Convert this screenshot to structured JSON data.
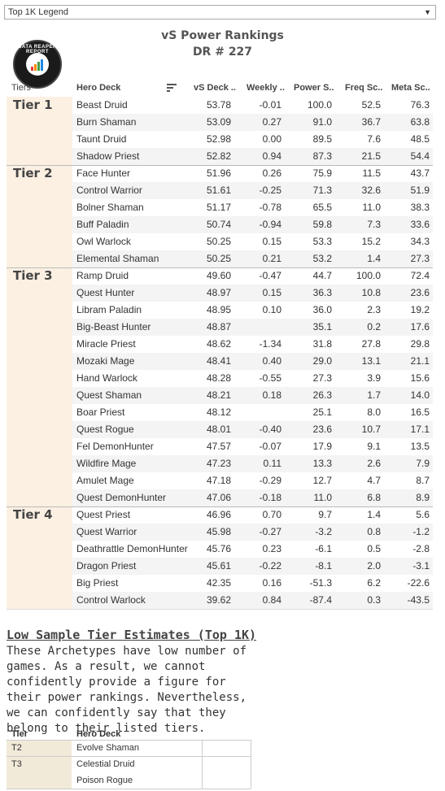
{
  "dropdown": {
    "selected": "Top 1K Legend"
  },
  "title": {
    "line1": "vS Power Rankings",
    "line2": "DR # 227"
  },
  "logo": {
    "text": "DATA REAPER REPORT"
  },
  "columns": [
    "Tiers",
    "Hero Deck",
    "vS Deck ..",
    "Weekly ..",
    "Power S..",
    "Freq Sc..",
    "Meta Sc.."
  ],
  "tiers": [
    {
      "label": "Tier 1",
      "rows": [
        [
          "Beast Druid",
          "53.78",
          "-0.01",
          "100.0",
          "52.5",
          "76.3"
        ],
        [
          "Burn Shaman",
          "53.09",
          "0.27",
          "91.0",
          "36.7",
          "63.8"
        ],
        [
          "Taunt Druid",
          "52.98",
          "0.00",
          "89.5",
          "7.6",
          "48.5"
        ],
        [
          "Shadow Priest",
          "52.82",
          "0.94",
          "87.3",
          "21.5",
          "54.4"
        ]
      ]
    },
    {
      "label": "Tier 2",
      "rows": [
        [
          "Face Hunter",
          "51.96",
          "0.26",
          "75.9",
          "11.5",
          "43.7"
        ],
        [
          "Control Warrior",
          "51.61",
          "-0.25",
          "71.3",
          "32.6",
          "51.9"
        ],
        [
          "Bolner Shaman",
          "51.17",
          "-0.78",
          "65.5",
          "11.0",
          "38.3"
        ],
        [
          "Buff Paladin",
          "50.74",
          "-0.94",
          "59.8",
          "7.3",
          "33.6"
        ],
        [
          "Owl Warlock",
          "50.25",
          "0.15",
          "53.3",
          "15.2",
          "34.3"
        ],
        [
          "Elemental Shaman",
          "50.25",
          "0.21",
          "53.2",
          "1.4",
          "27.3"
        ]
      ]
    },
    {
      "label": "Tier 3",
      "rows": [
        [
          "Ramp Druid",
          "49.60",
          "-0.47",
          "44.7",
          "100.0",
          "72.4"
        ],
        [
          "Quest Hunter",
          "48.97",
          "0.15",
          "36.3",
          "10.8",
          "23.6"
        ],
        [
          "Libram Paladin",
          "48.95",
          "0.10",
          "36.0",
          "2.3",
          "19.2"
        ],
        [
          "Big-Beast Hunter",
          "48.87",
          "",
          "35.1",
          "0.2",
          "17.6"
        ],
        [
          "Miracle Priest",
          "48.62",
          "-1.34",
          "31.8",
          "27.8",
          "29.8"
        ],
        [
          "Mozaki Mage",
          "48.41",
          "0.40",
          "29.0",
          "13.1",
          "21.1"
        ],
        [
          "Hand Warlock",
          "48.28",
          "-0.55",
          "27.3",
          "3.9",
          "15.6"
        ],
        [
          "Quest Shaman",
          "48.21",
          "0.18",
          "26.3",
          "1.7",
          "14.0"
        ],
        [
          "Boar Priest",
          "48.12",
          "",
          "25.1",
          "8.0",
          "16.5"
        ],
        [
          "Quest Rogue",
          "48.01",
          "-0.40",
          "23.6",
          "10.7",
          "17.1"
        ],
        [
          "Fel DemonHunter",
          "47.57",
          "-0.07",
          "17.9",
          "9.1",
          "13.5"
        ],
        [
          "Wildfire Mage",
          "47.23",
          "0.11",
          "13.3",
          "2.6",
          "7.9"
        ],
        [
          "Amulet Mage",
          "47.18",
          "-0.29",
          "12.7",
          "4.7",
          "8.7"
        ],
        [
          "Quest DemonHunter",
          "47.06",
          "-0.18",
          "11.0",
          "6.8",
          "8.9"
        ]
      ]
    },
    {
      "label": "Tier 4",
      "rows": [
        [
          "Quest Priest",
          "46.96",
          "0.70",
          "9.7",
          "1.4",
          "5.6"
        ],
        [
          "Quest Warrior",
          "45.98",
          "-0.27",
          "-3.2",
          "0.8",
          "-1.2"
        ],
        [
          "Deathrattle DemonHunter",
          "45.76",
          "0.23",
          "-6.1",
          "0.5",
          "-2.8"
        ],
        [
          "Dragon Priest",
          "45.61",
          "-0.22",
          "-8.1",
          "2.0",
          "-3.1"
        ],
        [
          "Big Priest",
          "42.35",
          "0.16",
          "-51.3",
          "6.2",
          "-22.6"
        ],
        [
          "Control Warlock",
          "39.62",
          "0.84",
          "-87.4",
          "0.3",
          "-43.5"
        ]
      ]
    }
  ],
  "low_sample": {
    "title": "Low Sample Tier Estimates (Top 1K)",
    "description": "These Archetypes have low number of games. As a result, we cannot confidently provide a figure for their power rankings. Nevertheless, we can confidently say that they belong to their listed tiers.",
    "headers": {
      "tier": "Tier",
      "deck": "Hero Deck"
    },
    "groups": [
      {
        "tier": "T2",
        "decks": [
          "Evolve Shaman"
        ]
      },
      {
        "tier": "T3",
        "decks": [
          "Celestial Druid",
          "Poison Rogue"
        ]
      }
    ]
  }
}
